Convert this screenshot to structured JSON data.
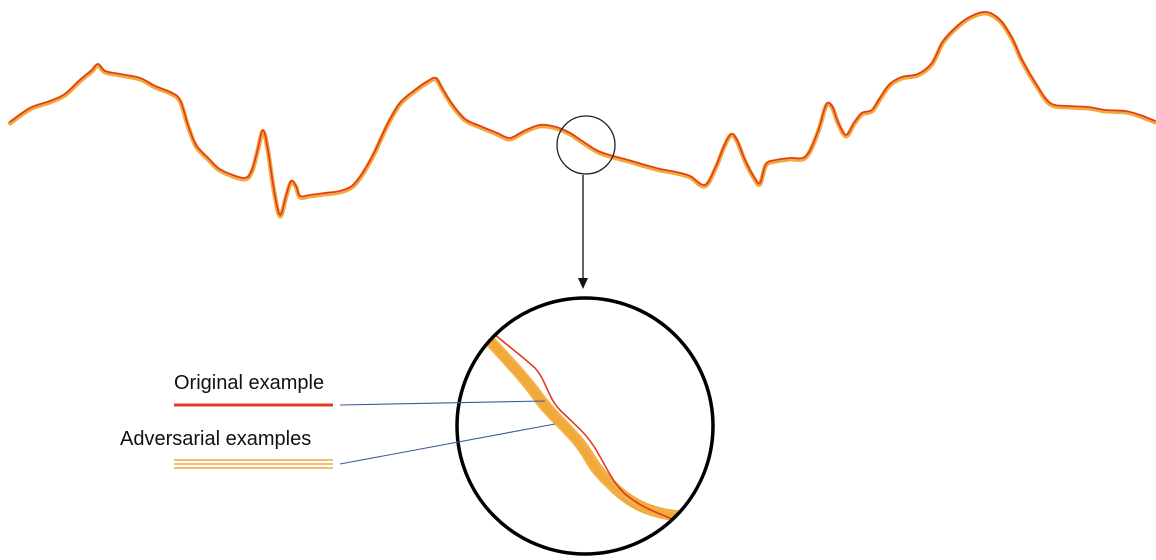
{
  "legend": {
    "original_label": "Original example",
    "adversarial_label": "Adversarial examples"
  },
  "colors": {
    "original": "#e03a1f",
    "adversarial": "#f2a93b",
    "pointer_line": "#3b5a9a",
    "circle_outline": "#000000",
    "background": "#ffffff"
  }
}
